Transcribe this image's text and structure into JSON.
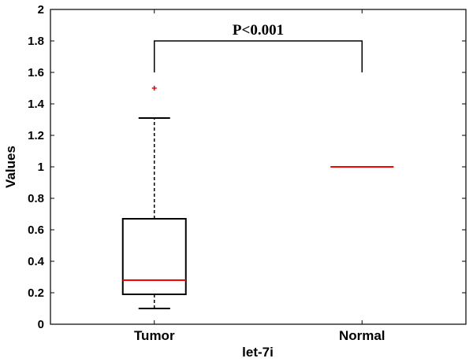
{
  "chart_data": {
    "type": "box",
    "xlabel": "let-7i",
    "ylabel": "Values",
    "ylim": [
      0,
      2
    ],
    "yticks": [
      "0",
      "0.2",
      "0.4",
      "0.6",
      "0.8",
      "1",
      "1.2",
      "1.4",
      "1.6",
      "1.8",
      "2"
    ],
    "categories": [
      "Tumor",
      "Normal"
    ],
    "boxes": [
      {
        "category": "Tumor",
        "whisker_low": 0.1,
        "q1": 0.19,
        "median": 0.28,
        "q3": 0.67,
        "whisker_high": 1.31,
        "outliers": [
          1.5
        ]
      },
      {
        "category": "Normal",
        "whisker_low": 1.0,
        "q1": 1.0,
        "median": 1.0,
        "q3": 1.0,
        "whisker_high": 1.0,
        "outliers": []
      }
    ],
    "annotation": {
      "text": "P<0.001",
      "bracket_level": 1.8,
      "left_drop_to": 1.6,
      "right_drop_to": 1.6
    },
    "colors": {
      "median": "#ff0000",
      "outlier": "#ff0000",
      "box": "#000000"
    },
    "grid": false
  }
}
